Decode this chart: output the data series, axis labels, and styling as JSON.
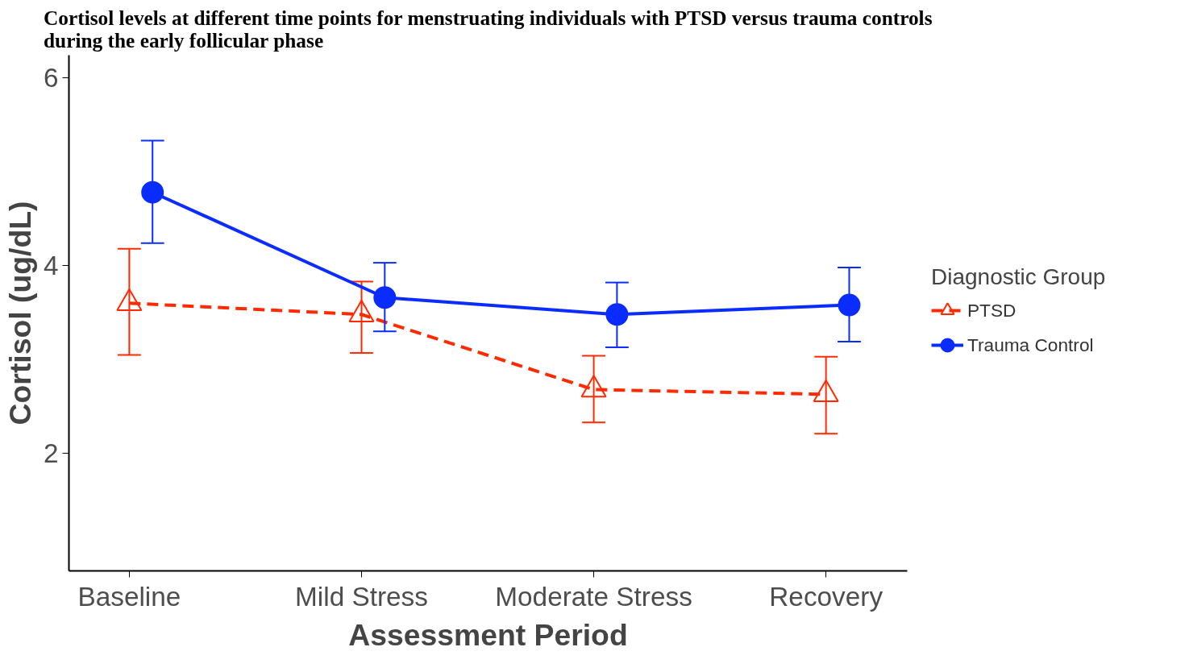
{
  "chart_data": {
    "type": "line",
    "title": "Cortisol levels at different time points for menstruating individuals with PTSD versus trauma controls during the early follicular  phase",
    "xlabel": "Assessment Period",
    "ylabel": "Cortisol (ug/dL)",
    "legend_title": "Diagnostic Group",
    "categories": [
      "Baseline",
      "Mild Stress",
      "Moderate Stress",
      "Recovery"
    ],
    "series": [
      {
        "name": "PTSD",
        "color": "#ff2a00",
        "marker": "triangle",
        "line_style": "dashed",
        "values": [
          3.6,
          3.48,
          2.68,
          2.63
        ],
        "errors": [
          [
            3.05,
            4.18
          ],
          [
            3.07,
            3.83
          ],
          [
            2.33,
            3.04
          ],
          [
            2.21,
            3.03
          ]
        ]
      },
      {
        "name": "Trauma Control",
        "color": "#0a2cff",
        "marker": "circle",
        "line_style": "solid",
        "values": [
          4.78,
          3.66,
          3.48,
          3.58
        ],
        "errors": [
          [
            4.24,
            5.33
          ],
          [
            3.3,
            4.03
          ],
          [
            3.13,
            3.82
          ],
          [
            3.19,
            3.98
          ]
        ]
      }
    ],
    "ylim": [
      0.75,
      6.24
    ],
    "yticks": [
      2,
      4,
      6
    ],
    "grid": false,
    "legend": "right"
  }
}
